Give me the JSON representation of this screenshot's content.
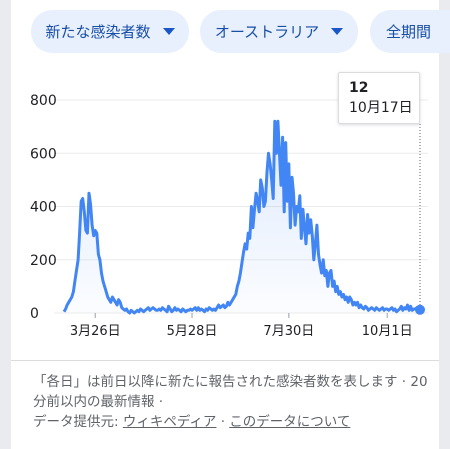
{
  "filters": {
    "metric": "新たな感染者数",
    "region": "オーストラリア",
    "period": "全期間"
  },
  "tooltip": {
    "value": "12",
    "date": "10月17日"
  },
  "chart_data": {
    "type": "line",
    "color": "#4285f4",
    "y_ticks": [
      "800",
      "600",
      "400",
      "200",
      "0"
    ],
    "ylim": [
      0,
      800
    ],
    "x_tick_labels": [
      "3月26日",
      "5月28日",
      "7月30日",
      "10月1日"
    ],
    "x_tick_index": [
      20,
      82,
      144,
      207
    ],
    "series": [
      {
        "values": [
          5,
          15,
          30,
          40,
          50,
          60,
          80,
          120,
          160,
          200,
          300,
          420,
          430,
          380,
          310,
          300,
          450,
          410,
          330,
          290,
          310,
          300,
          220,
          200,
          150,
          120,
          100,
          80,
          60,
          50,
          40,
          60,
          50,
          40,
          30,
          50,
          40,
          20,
          15,
          10,
          15,
          5,
          0,
          10,
          5,
          0,
          5,
          10,
          5,
          15,
          10,
          5,
          10,
          15,
          20,
          10,
          15,
          20,
          15,
          10,
          10,
          15,
          10,
          20,
          15,
          10,
          5,
          25,
          15,
          5,
          10,
          20,
          10,
          15,
          10,
          5,
          15,
          10,
          5,
          10,
          10,
          15,
          10,
          15,
          20,
          10,
          20,
          10,
          15,
          10,
          5,
          15,
          10,
          20,
          15,
          10,
          15,
          10,
          20,
          30,
          20,
          25,
          30,
          20,
          25,
          40,
          30,
          40,
          50,
          60,
          70,
          100,
          120,
          150,
          190,
          230,
          260,
          240,
          300,
          280,
          400,
          320,
          390,
          450,
          420,
          380,
          500,
          470,
          400,
          420,
          530,
          600,
          560,
          500,
          430,
          720,
          600,
          720,
          600,
          480,
          660,
          380,
          640,
          420,
          560,
          320,
          510,
          450,
          330,
          400,
          380,
          440,
          280,
          390,
          320,
          260,
          370,
          300,
          350,
          290,
          200,
          260,
          330,
          220,
          180,
          150,
          200,
          140,
          160,
          100,
          150,
          160,
          100,
          120,
          80,
          100,
          70,
          80,
          60,
          70,
          50,
          60,
          40,
          60,
          50,
          30,
          40,
          30,
          40,
          20,
          30,
          20,
          15,
          25,
          20,
          10,
          15,
          20,
          15,
          10,
          20,
          15,
          10,
          15,
          20,
          10,
          15,
          15,
          10,
          15,
          20,
          10,
          15,
          5,
          10,
          15,
          25,
          10,
          20,
          15,
          30,
          10,
          25,
          10,
          15,
          15,
          20,
          12,
          12
        ]
      }
    ],
    "tooltip_value": 12,
    "tooltip_date": "10月17日"
  },
  "footer": {
    "line1": "「各日」は前日以降に新たに報告された感染者数を表します · 20 分前以内の最新情報 ·",
    "source_label": "データ提供元: ",
    "source_link": "ウィキペディア",
    "sep": " · ",
    "about_link": "このデータについて"
  }
}
